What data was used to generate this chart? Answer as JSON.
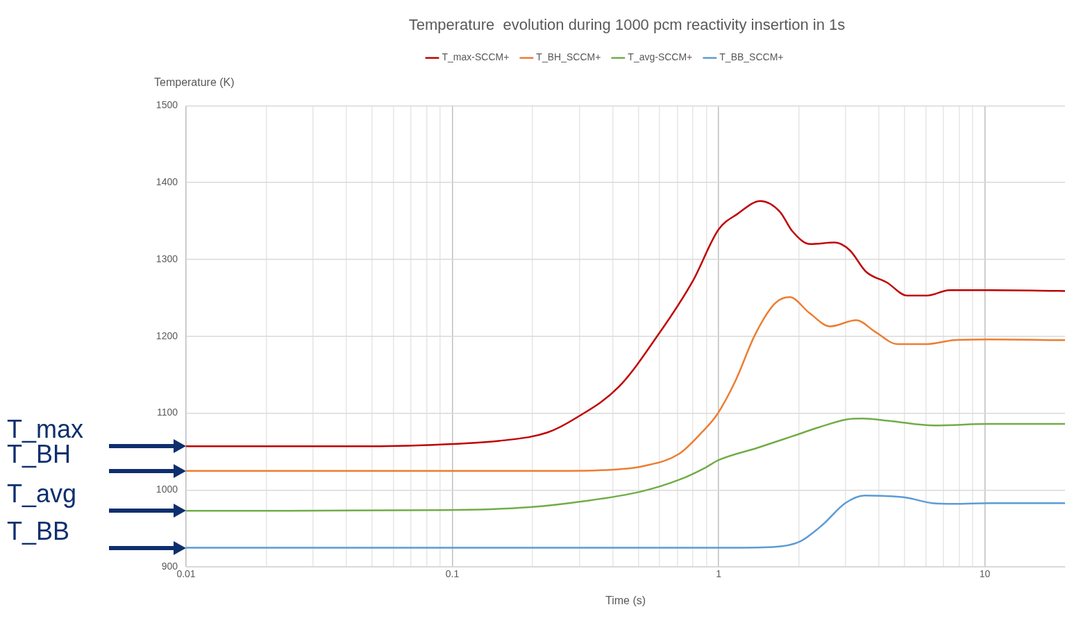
{
  "chart_data": {
    "type": "line",
    "title": "Temperature  evolution during 1000 pcm reactivity insertion in 1s",
    "xlabel": "Time (s)",
    "ylabel": "Temperature (K)",
    "log": "x",
    "grid": true,
    "legend": "top",
    "marker": "none",
    "line_style": "solid",
    "xlim": [
      0.01,
      20
    ],
    "ylim": [
      900,
      1500
    ],
    "yticks": [
      900,
      1000,
      1100,
      1200,
      1300,
      1400,
      1500
    ],
    "xticks": [
      0.01,
      {
        "value": 0.02,
        "label": null
      },
      {
        "value": 0.03,
        "label": null
      },
      {
        "value": 0.04,
        "label": null
      },
      {
        "value": 0.05,
        "label": null
      },
      {
        "value": 0.06,
        "label": null
      },
      {
        "value": 0.07,
        "label": null
      },
      {
        "value": 0.08,
        "label": null
      },
      {
        "value": 0.09,
        "label": null
      },
      0.1,
      {
        "value": 0.2,
        "label": null
      },
      {
        "value": 0.3,
        "label": null
      },
      {
        "value": 0.4,
        "label": null
      },
      {
        "value": 0.5,
        "label": null
      },
      {
        "value": 0.6,
        "label": null
      },
      {
        "value": 0.7,
        "label": null
      },
      {
        "value": 0.8,
        "label": null
      },
      {
        "value": 0.9,
        "label": null
      },
      1,
      {
        "value": 2,
        "label": null
      },
      {
        "value": 3,
        "label": null
      },
      {
        "value": 4,
        "label": null
      },
      {
        "value": 5,
        "label": null
      },
      {
        "value": 6,
        "label": null
      },
      {
        "value": 7,
        "label": null
      },
      {
        "value": 8,
        "label": null
      },
      {
        "value": 9,
        "label": null
      },
      10
    ],
    "series": [
      {
        "name": "T_max-SCCM+",
        "color": "#c00000",
        "x": [
          0.01,
          0.05,
          0.1,
          0.15,
          0.228,
          0.292,
          0.421,
          0.593,
          0.8,
          1.0,
          1.175,
          1.435,
          1.7,
          1.89,
          2.21,
          2.73,
          3.11,
          3.58,
          4.29,
          5.1,
          6.07,
          7.36,
          10.4,
          20
        ],
        "values": [
          1057,
          1057,
          1060,
          1064,
          1075,
          1094,
          1134,
          1202,
          1272,
          1339,
          1359,
          1376,
          1362,
          1337,
          1320,
          1322,
          1312,
          1284,
          1270,
          1253,
          1253,
          1260,
          1260,
          1259
        ]
      },
      {
        "name": "T_BH_SCCM+",
        "color": "#ed7d31",
        "x": [
          0.01,
          0.1,
          0.25,
          0.421,
          0.52,
          0.71,
          0.87,
          0.99,
          1.16,
          1.37,
          1.63,
          1.85,
          2.2,
          2.62,
          3.29,
          3.87,
          4.69,
          6.07,
          7.67,
          10.4,
          20
        ],
        "values": [
          1025,
          1025,
          1025,
          1027,
          1031,
          1047,
          1076,
          1099,
          1143,
          1202,
          1243,
          1251,
          1230,
          1213,
          1221,
          1206,
          1190,
          1190,
          1195,
          1196,
          1195
        ]
      },
      {
        "name": "T_avg-SCCM+",
        "color": "#70ad47",
        "x": [
          0.01,
          0.0936,
          0.199,
          0.304,
          0.51,
          0.718,
          0.89,
          1.0,
          1.4,
          1.89,
          2.4,
          3.04,
          3.47,
          4.39,
          6.44,
          10.4,
          20
        ],
        "values": [
          973,
          974,
          978,
          985,
          998,
          1014,
          1029,
          1039,
          1055,
          1070,
          1082,
          1092,
          1093,
          1090,
          1084,
          1086,
          1086
        ]
      },
      {
        "name": "T_BB_SCCM+",
        "color": "#5b9bd5",
        "x": [
          0.01,
          0.5,
          1.0,
          1.6,
          2.02,
          2.46,
          2.99,
          3.53,
          4.39,
          5.1,
          6.34,
          7.67,
          10.4,
          20
        ],
        "values": [
          925,
          925,
          925,
          926,
          933,
          955,
          983,
          993,
          992,
          990,
          983,
          982,
          983,
          983
        ]
      }
    ],
    "annotations": [
      "T_max",
      "T_BH",
      "T_avg",
      "T_BB"
    ]
  }
}
